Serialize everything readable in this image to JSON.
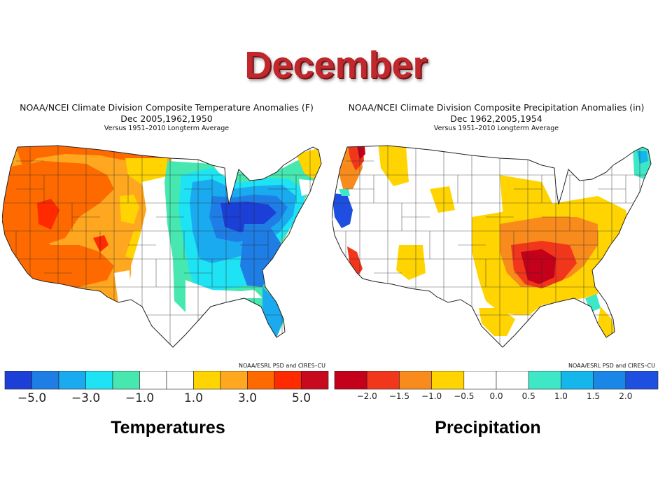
{
  "slide": {
    "title": "December"
  },
  "temperature": {
    "header_line1": "NOAA/NCEI Climate Division Composite Temperature Anomalies (F)",
    "header_line2": "Dec  2005,1962,1950",
    "header_line3": "Versus 1951–2010 Longterm Average",
    "credit": "NOAA/ESRL PSD and CIRES–CU",
    "caption": "Temperatures",
    "colorbar": {
      "colors": [
        "#1c3fd8",
        "#1f7de6",
        "#1aaaf0",
        "#1ee3f5",
        "#46e8b0",
        "#ffffff",
        "#ffffff",
        "#ffd400",
        "#ffa81f",
        "#ff6a00",
        "#ff2a00",
        "#c80a1e"
      ],
      "tick_labels": [
        "−5.0",
        "−3.0",
        "−1.0",
        "1.0",
        "3.0",
        "5.0"
      ]
    },
    "pattern": "Warm anomalies over the West and northern Plains; cold anomalies over the central and eastern US, strongest in the Great Lakes / Ohio Valley / Mid-Atlantic."
  },
  "precipitation": {
    "header_line1": "NOAA/NCEI Climate Division Composite Precipitation Anomalies (in)",
    "header_line2": "Dec  1962,2005,1954",
    "header_line3": "Versus 1951–2010 Longterm Average",
    "credit": "NOAA/ESRL PSD and CIRES–CU",
    "caption": "Precipitation",
    "colorbar": {
      "colors": [
        "#c4001a",
        "#f1361c",
        "#f98b1c",
        "#ffd400",
        "#ffffff",
        "#ffffff",
        "#3ee8c6",
        "#15b6ec",
        "#1a86e8",
        "#1f4fe0"
      ],
      "tick_labels": [
        "−2.0",
        "−1.5",
        "−1.0",
        "−0.5",
        "0.0",
        "0.5",
        "1.0",
        "1.5",
        "2.0"
      ]
    },
    "pattern": "Dry anomalies across the Southeast, Tennessee and Ohio valleys and Pacific Northwest; wet anomalies in northern California and New England."
  }
}
